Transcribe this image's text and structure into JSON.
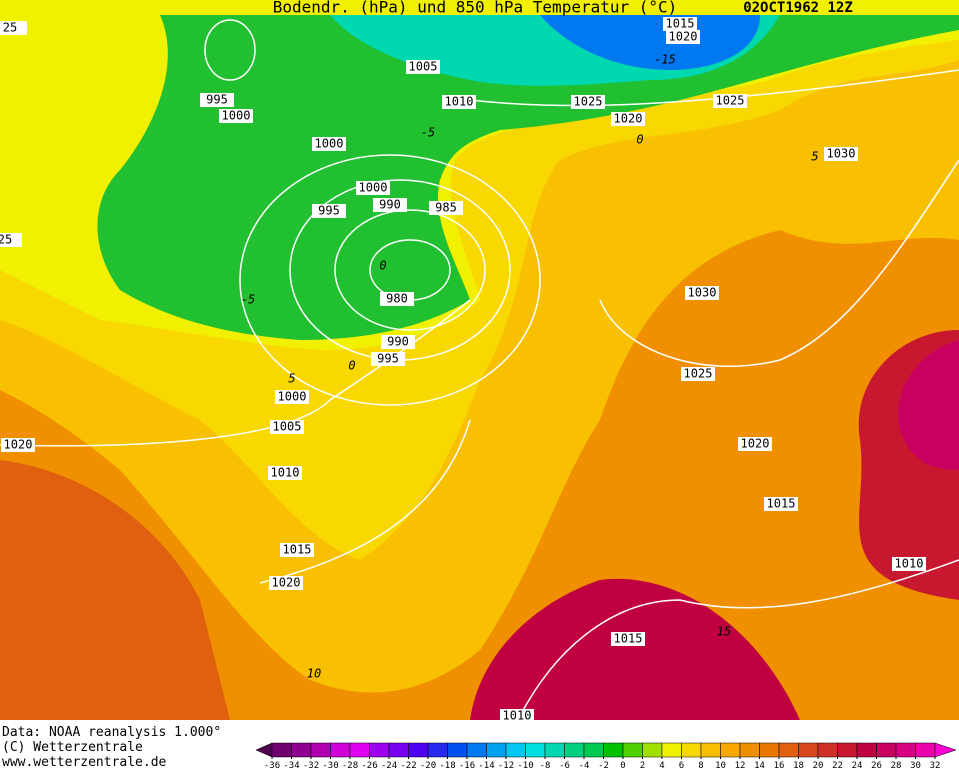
{
  "header": {
    "title": "Bodendr. (hPa) und 850 hPa Temperatur (°C)",
    "date": "02OCT1962 12Z"
  },
  "isobar_labels": [
    "1015",
    "1020",
    "1005",
    "995",
    "1000",
    "1010",
    "1025",
    "1025",
    "1020",
    "1000",
    "1030",
    "1000",
    "990",
    "985",
    "995",
    "980",
    "1030",
    "990",
    "995",
    "1025",
    "1000",
    "1005",
    "1020",
    "1020",
    "1010",
    "1015",
    "1015",
    "1010",
    "1020",
    "1015",
    "1010",
    "25",
    "25"
  ],
  "temperature_labels": [
    "-15",
    "0",
    "5",
    "-5",
    "0",
    "-5",
    "0",
    "5",
    "15",
    "10"
  ],
  "footer": {
    "data": "Data: NOAA reanalysis 1.000°",
    "copyright": "(C) Wetterzentrale",
    "url": "www.wetterzentrale.de"
  },
  "colorbar": {
    "ticks": [
      -36,
      -34,
      -32,
      -30,
      -28,
      -26,
      -24,
      -22,
      -20,
      -18,
      -16,
      -14,
      -12,
      -10,
      -8,
      -6,
      -4,
      -2,
      0,
      2,
      4,
      6,
      8,
      10,
      12,
      14,
      16,
      18,
      20,
      22,
      24,
      26,
      28,
      30,
      32
    ],
    "colors": [
      "#500050",
      "#700070",
      "#900090",
      "#b000b0",
      "#d000d8",
      "#e000f0",
      "#a000f0",
      "#7800f0",
      "#5000f0",
      "#2828f0",
      "#0050f0",
      "#0078f0",
      "#00a0f0",
      "#00c8f0",
      "#00e0e0",
      "#00d8b0",
      "#00d080",
      "#00c850",
      "#00c000",
      "#50d000",
      "#a0e000",
      "#f0f000",
      "#f8d800",
      "#f8c000",
      "#f8a800",
      "#f09000",
      "#e87800",
      "#e06010",
      "#d84820",
      "#d03028",
      "#c81830",
      "#c00040",
      "#c80060",
      "#d80080",
      "#e800a8",
      "#f800d0"
    ]
  }
}
